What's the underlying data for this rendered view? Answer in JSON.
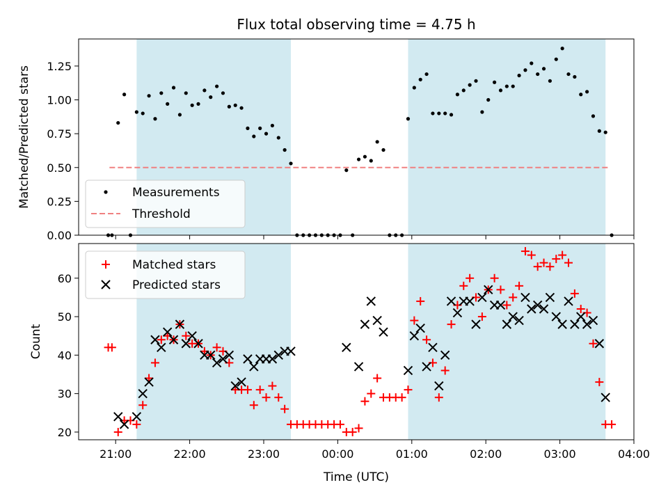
{
  "title": "Flux total observing time = 4.75 h",
  "chart_data": [
    {
      "type": "scatter",
      "ylabel": "Matched/Predicted stars",
      "xlim": [
        "20:30",
        "04:00"
      ],
      "ylim": [
        0,
        1.45
      ],
      "yticks": [
        "0.00",
        "0.25",
        "0.50",
        "0.75",
        "1.00",
        "1.25"
      ],
      "legend_position": "lower-left",
      "shaded_intervals": [
        [
          "21:17",
          "23:22"
        ],
        [
          "00:57",
          "03:37"
        ]
      ],
      "shade_color": "#add8e6",
      "series": [
        {
          "name": "Measurements",
          "marker": "dot",
          "color": "#000000",
          "points": [
            [
              "20:54",
              0.0
            ],
            [
              "20:57",
              0.0
            ],
            [
              "21:02",
              0.83
            ],
            [
              "21:07",
              1.04
            ],
            [
              "21:12",
              0.0
            ],
            [
              "21:17",
              0.91
            ],
            [
              "21:22",
              0.9
            ],
            [
              "21:27",
              1.03
            ],
            [
              "21:32",
              0.86
            ],
            [
              "21:37",
              1.05
            ],
            [
              "21:42",
              0.97
            ],
            [
              "21:47",
              1.09
            ],
            [
              "21:52",
              0.89
            ],
            [
              "21:57",
              1.05
            ],
            [
              "22:02",
              0.96
            ],
            [
              "22:07",
              0.97
            ],
            [
              "22:12",
              1.07
            ],
            [
              "22:17",
              1.02
            ],
            [
              "22:22",
              1.1
            ],
            [
              "22:27",
              1.05
            ],
            [
              "22:32",
              0.95
            ],
            [
              "22:37",
              0.96
            ],
            [
              "22:42",
              0.94
            ],
            [
              "22:47",
              0.79
            ],
            [
              "22:52",
              0.73
            ],
            [
              "22:57",
              0.79
            ],
            [
              "23:02",
              0.75
            ],
            [
              "23:07",
              0.81
            ],
            [
              "23:12",
              0.72
            ],
            [
              "23:17",
              0.63
            ],
            [
              "23:22",
              0.53
            ],
            [
              "23:27",
              0.0
            ],
            [
              "23:32",
              0.0
            ],
            [
              "23:37",
              0.0
            ],
            [
              "23:42",
              0.0
            ],
            [
              "23:47",
              0.0
            ],
            [
              "23:52",
              0.0
            ],
            [
              "23:57",
              0.0
            ],
            [
              "00:02",
              0.0
            ],
            [
              "00:07",
              0.48
            ],
            [
              "00:12",
              0.0
            ],
            [
              "00:17",
              0.56
            ],
            [
              "00:22",
              0.58
            ],
            [
              "00:27",
              0.55
            ],
            [
              "00:32",
              0.69
            ],
            [
              "00:37",
              0.63
            ],
            [
              "00:42",
              0.0
            ],
            [
              "00:47",
              0.0
            ],
            [
              "00:52",
              0.0
            ],
            [
              "00:57",
              0.86
            ],
            [
              "01:02",
              1.09
            ],
            [
              "01:07",
              1.15
            ],
            [
              "01:12",
              1.19
            ],
            [
              "01:17",
              0.9
            ],
            [
              "01:22",
              0.9
            ],
            [
              "01:27",
              0.9
            ],
            [
              "01:32",
              0.89
            ],
            [
              "01:37",
              1.04
            ],
            [
              "01:42",
              1.07
            ],
            [
              "01:47",
              1.11
            ],
            [
              "01:52",
              1.14
            ],
            [
              "01:57",
              0.91
            ],
            [
              "02:02",
              1.0
            ],
            [
              "02:07",
              1.13
            ],
            [
              "02:12",
              1.07
            ],
            [
              "02:17",
              1.1
            ],
            [
              "02:22",
              1.1
            ],
            [
              "02:27",
              1.18
            ],
            [
              "02:32",
              1.22
            ],
            [
              "02:37",
              1.27
            ],
            [
              "02:42",
              1.19
            ],
            [
              "02:47",
              1.23
            ],
            [
              "02:52",
              1.14
            ],
            [
              "02:57",
              1.3
            ],
            [
              "03:02",
              1.38
            ],
            [
              "03:07",
              1.19
            ],
            [
              "03:12",
              1.17
            ],
            [
              "03:17",
              1.04
            ],
            [
              "03:22",
              1.06
            ],
            [
              "03:27",
              0.88
            ],
            [
              "03:32",
              0.77
            ],
            [
              "03:37",
              0.76
            ],
            [
              "03:42",
              0.0
            ]
          ]
        },
        {
          "name": "Threshold",
          "line": "dashed",
          "color": "#f08080",
          "points": [
            [
              "20:55",
              0.5
            ],
            [
              "03:40",
              0.5
            ]
          ]
        }
      ]
    },
    {
      "type": "scatter",
      "xlabel": "Time (UTC)",
      "ylabel": "Count",
      "xlim": [
        "20:30",
        "04:00"
      ],
      "ylim": [
        18,
        69
      ],
      "xticks": [
        "21:00",
        "22:00",
        "23:00",
        "00:00",
        "01:00",
        "02:00",
        "03:00",
        "04:00"
      ],
      "yticks": [
        "20",
        "30",
        "40",
        "50",
        "60"
      ],
      "legend_position": "upper-left",
      "shaded_intervals": [
        [
          "21:17",
          "23:22"
        ],
        [
          "00:57",
          "03:37"
        ]
      ],
      "shade_color": "#add8e6",
      "series": [
        {
          "name": "Matched stars",
          "marker": "plus",
          "color": "#ff0000",
          "points": [
            [
              "20:54",
              42
            ],
            [
              "20:57",
              42
            ],
            [
              "21:02",
              20
            ],
            [
              "21:07",
              23
            ],
            [
              "21:12",
              23
            ],
            [
              "21:17",
              22
            ],
            [
              "21:22",
              27
            ],
            [
              "21:27",
              34
            ],
            [
              "21:32",
              38
            ],
            [
              "21:37",
              44
            ],
            [
              "21:42",
              45
            ],
            [
              "21:47",
              44
            ],
            [
              "21:52",
              48
            ],
            [
              "21:57",
              45
            ],
            [
              "22:02",
              43
            ],
            [
              "22:07",
              43
            ],
            [
              "22:12",
              41
            ],
            [
              "22:17",
              40
            ],
            [
              "22:22",
              42
            ],
            [
              "22:27",
              41
            ],
            [
              "22:32",
              38
            ],
            [
              "22:37",
              31
            ],
            [
              "22:42",
              31
            ],
            [
              "22:47",
              31
            ],
            [
              "22:52",
              27
            ],
            [
              "22:57",
              31
            ],
            [
              "23:02",
              29
            ],
            [
              "23:07",
              32
            ],
            [
              "23:12",
              29
            ],
            [
              "23:17",
              26
            ],
            [
              "23:22",
              22
            ],
            [
              "23:27",
              22
            ],
            [
              "23:32",
              22
            ],
            [
              "23:37",
              22
            ],
            [
              "23:42",
              22
            ],
            [
              "23:47",
              22
            ],
            [
              "23:52",
              22
            ],
            [
              "23:57",
              22
            ],
            [
              "00:02",
              22
            ],
            [
              "00:07",
              20
            ],
            [
              "00:12",
              20
            ],
            [
              "00:17",
              21
            ],
            [
              "00:22",
              28
            ],
            [
              "00:27",
              30
            ],
            [
              "00:32",
              34
            ],
            [
              "00:37",
              29
            ],
            [
              "00:42",
              29
            ],
            [
              "00:47",
              29
            ],
            [
              "00:52",
              29
            ],
            [
              "00:57",
              31
            ],
            [
              "01:02",
              49
            ],
            [
              "01:07",
              54
            ],
            [
              "01:12",
              44
            ],
            [
              "01:17",
              38
            ],
            [
              "01:22",
              29
            ],
            [
              "01:27",
              36
            ],
            [
              "01:32",
              48
            ],
            [
              "01:37",
              53
            ],
            [
              "01:42",
              58
            ],
            [
              "01:47",
              60
            ],
            [
              "01:52",
              55
            ],
            [
              "01:57",
              50
            ],
            [
              "02:02",
              57
            ],
            [
              "02:07",
              60
            ],
            [
              "02:12",
              57
            ],
            [
              "02:17",
              53
            ],
            [
              "02:22",
              55
            ],
            [
              "02:27",
              58
            ],
            [
              "02:32",
              67
            ],
            [
              "02:37",
              66
            ],
            [
              "02:42",
              63
            ],
            [
              "02:47",
              64
            ],
            [
              "02:52",
              63
            ],
            [
              "02:57",
              65
            ],
            [
              "03:02",
              66
            ],
            [
              "03:07",
              64
            ],
            [
              "03:12",
              56
            ],
            [
              "03:17",
              52
            ],
            [
              "03:22",
              51
            ],
            [
              "03:27",
              43
            ],
            [
              "03:32",
              33
            ],
            [
              "03:37",
              22
            ],
            [
              "03:42",
              22
            ]
          ]
        },
        {
          "name": "Predicted stars",
          "marker": "x",
          "color": "#000000",
          "points": [
            [
              "21:02",
              24
            ],
            [
              "21:07",
              22
            ],
            [
              "21:17",
              24
            ],
            [
              "21:22",
              30
            ],
            [
              "21:27",
              33
            ],
            [
              "21:32",
              44
            ],
            [
              "21:37",
              42
            ],
            [
              "21:42",
              46
            ],
            [
              "21:47",
              44
            ],
            [
              "21:52",
              48
            ],
            [
              "21:57",
              43
            ],
            [
              "22:02",
              45
            ],
            [
              "22:07",
              43
            ],
            [
              "22:12",
              40
            ],
            [
              "22:17",
              40
            ],
            [
              "22:22",
              38
            ],
            [
              "22:27",
              39
            ],
            [
              "22:32",
              40
            ],
            [
              "22:37",
              32
            ],
            [
              "22:42",
              33
            ],
            [
              "22:47",
              39
            ],
            [
              "22:52",
              37
            ],
            [
              "22:57",
              39
            ],
            [
              "23:02",
              39
            ],
            [
              "23:07",
              39
            ],
            [
              "23:12",
              40
            ],
            [
              "23:17",
              41
            ],
            [
              "23:22",
              41
            ],
            [
              "00:07",
              42
            ],
            [
              "00:17",
              37
            ],
            [
              "00:22",
              48
            ],
            [
              "00:27",
              54
            ],
            [
              "00:32",
              49
            ],
            [
              "00:37",
              46
            ],
            [
              "00:57",
              36
            ],
            [
              "01:02",
              45
            ],
            [
              "01:07",
              47
            ],
            [
              "01:12",
              37
            ],
            [
              "01:17",
              42
            ],
            [
              "01:22",
              32
            ],
            [
              "01:27",
              40
            ],
            [
              "01:32",
              54
            ],
            [
              "01:37",
              51
            ],
            [
              "01:42",
              54
            ],
            [
              "01:47",
              54
            ],
            [
              "01:52",
              48
            ],
            [
              "01:57",
              55
            ],
            [
              "02:02",
              57
            ],
            [
              "02:07",
              53
            ],
            [
              "02:12",
              53
            ],
            [
              "02:17",
              48
            ],
            [
              "02:22",
              50
            ],
            [
              "02:27",
              49
            ],
            [
              "02:32",
              55
            ],
            [
              "02:37",
              52
            ],
            [
              "02:42",
              53
            ],
            [
              "02:47",
              52
            ],
            [
              "02:52",
              55
            ],
            [
              "02:57",
              50
            ],
            [
              "03:02",
              48
            ],
            [
              "03:07",
              54
            ],
            [
              "03:12",
              48
            ],
            [
              "03:17",
              50
            ],
            [
              "03:22",
              48
            ],
            [
              "03:27",
              49
            ],
            [
              "03:32",
              43
            ],
            [
              "03:37",
              29
            ]
          ]
        }
      ]
    }
  ]
}
